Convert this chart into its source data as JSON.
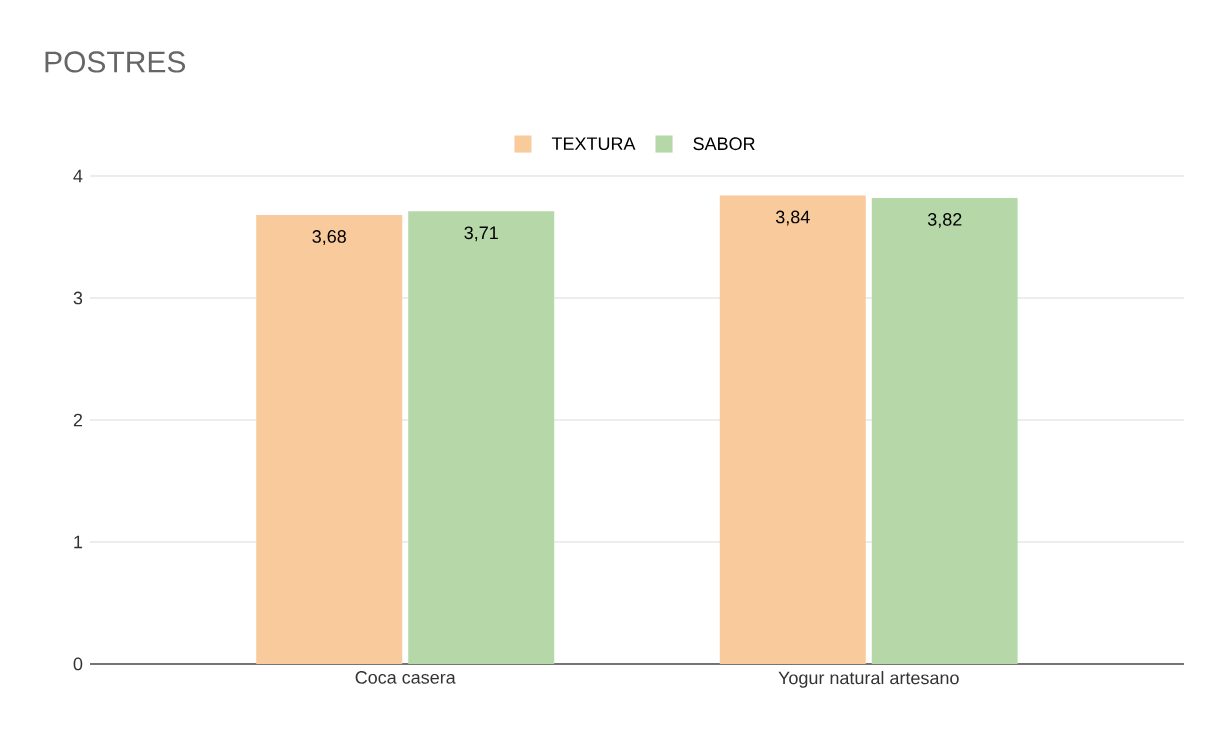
{
  "chart_data": {
    "type": "bar",
    "title": "POSTRES",
    "categories": [
      "Coca casera",
      "Yogur natural artesano"
    ],
    "series": [
      {
        "name": "TEXTURA",
        "color": "#f9cb9c",
        "values": [
          3.68,
          3.84
        ],
        "value_labels": [
          "3,68",
          "3,84"
        ]
      },
      {
        "name": "SABOR",
        "color": "#b6d7a8",
        "values": [
          3.71,
          3.82
        ],
        "value_labels": [
          "3,71",
          "3,82"
        ]
      }
    ],
    "ylim": [
      0,
      4
    ],
    "yticks": [
      0,
      1,
      2,
      3,
      4
    ],
    "grid": "y",
    "legend": "top"
  }
}
